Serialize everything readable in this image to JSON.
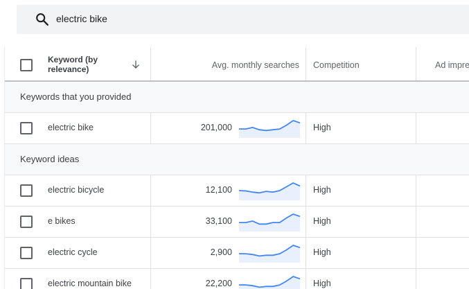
{
  "search": {
    "query": "electric bike"
  },
  "table": {
    "headers": {
      "keyword": "Keyword (by relevance)",
      "searches": "Avg. monthly searches",
      "competition": "Competition",
      "ad": "Ad impre"
    },
    "sections": [
      {
        "label": "Keywords that you provided",
        "rows": [
          {
            "keyword": "electric bike",
            "searches": "201,000",
            "competition": "High",
            "trend": [
              0.45,
              0.45,
              0.55,
              0.4,
              0.35,
              0.4,
              0.45,
              0.7,
              1.0,
              0.85
            ]
          }
        ]
      },
      {
        "label": "Keyword ideas",
        "rows": [
          {
            "keyword": "electric bicycle",
            "searches": "12,100",
            "competition": "High",
            "trend": [
              0.5,
              0.48,
              0.4,
              0.35,
              0.45,
              0.4,
              0.5,
              0.75,
              1.0,
              0.8
            ]
          },
          {
            "keyword": "e bikes",
            "searches": "33,100",
            "competition": "High",
            "trend": [
              0.45,
              0.45,
              0.55,
              0.35,
              0.35,
              0.45,
              0.45,
              0.75,
              1.0,
              0.85
            ]
          },
          {
            "keyword": "electric cycle",
            "searches": "2,900",
            "competition": "High",
            "trend": [
              0.45,
              0.45,
              0.4,
              0.3,
              0.35,
              0.35,
              0.45,
              0.7,
              1.0,
              0.85
            ]
          },
          {
            "keyword": "electric mountain bike",
            "searches": "22,200",
            "competition": "High",
            "trend": [
              0.45,
              0.45,
              0.4,
              0.3,
              0.35,
              0.35,
              0.45,
              0.7,
              1.0,
              0.85
            ]
          }
        ]
      }
    ]
  },
  "colors": {
    "spark_line": "#4285f4",
    "spark_fill": "#e8f0fe"
  }
}
